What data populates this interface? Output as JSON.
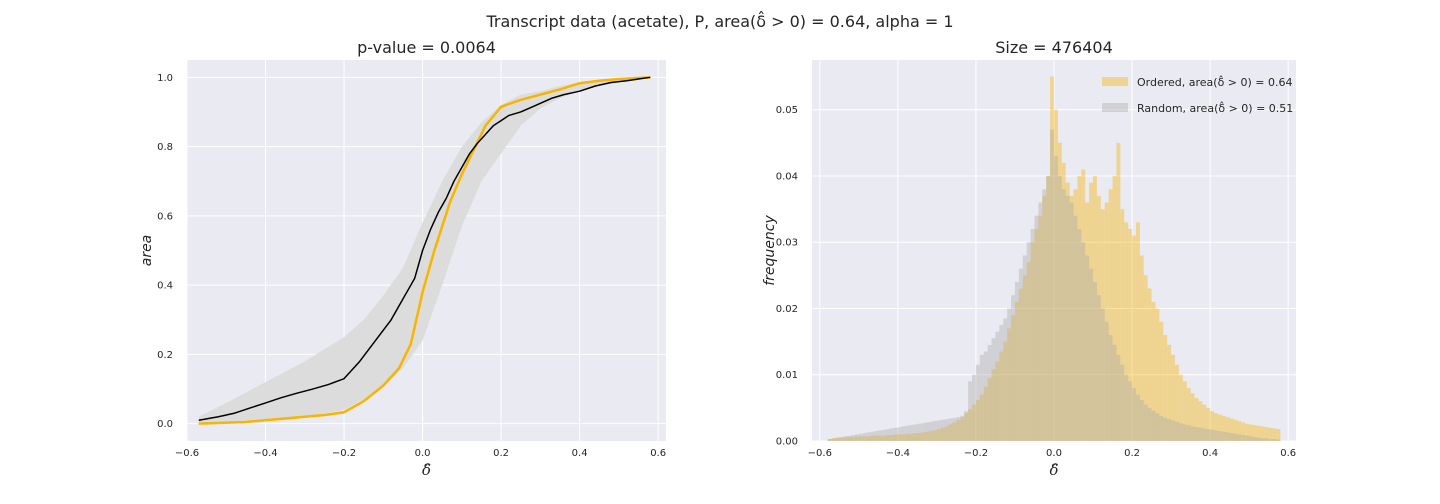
{
  "figure": {
    "suptitle": "Transcript data (acetate), P, area(δ̂ > 0) = 0.64, alpha = 1"
  },
  "chart_data": [
    {
      "type": "line",
      "title": "p-value = 0.0064",
      "xlabel": "δ̂",
      "ylabel": "area",
      "xlim": [
        -0.6,
        0.62
      ],
      "ylim": [
        -0.05,
        1.05
      ],
      "xticks": [
        -0.6,
        -0.4,
        -0.2,
        0.0,
        0.2,
        0.4,
        0.6
      ],
      "xtick_labels": [
        "−0.6",
        "−0.4",
        "−0.2",
        "0.0",
        "0.2",
        "0.4",
        "0.6"
      ],
      "yticks": [
        0.0,
        0.2,
        0.4,
        0.6,
        0.8,
        1.0
      ],
      "ytick_labels": [
        "0.0",
        "0.2",
        "0.4",
        "0.6",
        "0.8",
        "1.0"
      ],
      "grid": true,
      "colors": {
        "ordered": "#f7b500",
        "random": "#000000",
        "band": "#dcdcdc",
        "background": "#eaeaf2"
      },
      "series": [
        {
          "role": "ordered",
          "x": [
            -0.57,
            -0.45,
            -0.35,
            -0.25,
            -0.2,
            -0.15,
            -0.1,
            -0.06,
            -0.03,
            0.0,
            0.03,
            0.07,
            0.1,
            0.13,
            0.16,
            0.2,
            0.25,
            0.3,
            0.35,
            0.4,
            0.45,
            0.5,
            0.58
          ],
          "values": [
            0.0,
            0.005,
            0.015,
            0.025,
            0.033,
            0.065,
            0.11,
            0.16,
            0.23,
            0.38,
            0.5,
            0.64,
            0.72,
            0.79,
            0.86,
            0.915,
            0.935,
            0.95,
            0.965,
            0.983,
            0.99,
            0.995,
            1.0
          ]
        },
        {
          "role": "random",
          "x": [
            -0.57,
            -0.52,
            -0.48,
            -0.44,
            -0.4,
            -0.36,
            -0.32,
            -0.28,
            -0.24,
            -0.2,
            -0.18,
            -0.16,
            -0.14,
            -0.12,
            -0.1,
            -0.08,
            -0.06,
            -0.04,
            -0.02,
            0.0,
            0.02,
            0.04,
            0.06,
            0.08,
            0.1,
            0.12,
            0.14,
            0.16,
            0.18,
            0.2,
            0.22,
            0.25,
            0.28,
            0.3,
            0.33,
            0.36,
            0.4,
            0.44,
            0.48,
            0.52,
            0.55,
            0.58
          ],
          "values": [
            0.01,
            0.02,
            0.03,
            0.045,
            0.06,
            0.075,
            0.088,
            0.1,
            0.113,
            0.13,
            0.155,
            0.18,
            0.21,
            0.24,
            0.27,
            0.3,
            0.34,
            0.38,
            0.42,
            0.5,
            0.56,
            0.61,
            0.65,
            0.7,
            0.74,
            0.78,
            0.81,
            0.835,
            0.86,
            0.875,
            0.89,
            0.9,
            0.915,
            0.925,
            0.94,
            0.95,
            0.96,
            0.975,
            0.985,
            0.99,
            0.995,
            1.0
          ]
        }
      ],
      "band": {
        "x": [
          -0.57,
          -0.5,
          -0.4,
          -0.3,
          -0.2,
          -0.15,
          -0.1,
          -0.05,
          0.0,
          0.05,
          0.1,
          0.15,
          0.2,
          0.25,
          0.3,
          0.35,
          0.4,
          0.45,
          0.5,
          0.58
        ],
        "upper": [
          0.02,
          0.06,
          0.12,
          0.18,
          0.25,
          0.3,
          0.37,
          0.45,
          0.58,
          0.7,
          0.8,
          0.87,
          0.92,
          0.95,
          0.96,
          0.975,
          0.985,
          0.99,
          0.995,
          1.0
        ],
        "lower": [
          0.0,
          0.005,
          0.012,
          0.02,
          0.04,
          0.07,
          0.11,
          0.16,
          0.24,
          0.4,
          0.57,
          0.7,
          0.78,
          0.86,
          0.91,
          0.94,
          0.96,
          0.975,
          0.985,
          1.0
        ]
      }
    },
    {
      "type": "bar",
      "title": "Size = 476404",
      "xlabel": "δ̂",
      "ylabel": "frequency",
      "xlim": [
        -0.62,
        0.62
      ],
      "ylim": [
        0.0,
        0.0575
      ],
      "xticks": [
        -0.6,
        -0.4,
        -0.2,
        0.0,
        0.2,
        0.4,
        0.6
      ],
      "xtick_labels": [
        "−0.6",
        "−0.4",
        "−0.2",
        "0.0",
        "0.2",
        "0.4",
        "0.6"
      ],
      "yticks": [
        0.0,
        0.01,
        0.02,
        0.03,
        0.04,
        0.05
      ],
      "ytick_labels": [
        "0.00",
        "0.01",
        "0.02",
        "0.03",
        "0.04",
        "0.05"
      ],
      "grid": true,
      "legend_position": "upper-right",
      "bin_start": -0.58,
      "bin_width": 0.01,
      "colors": {
        "ordered": "#f7b500",
        "random": "#a9a9a9",
        "background": "#eaeaf2"
      },
      "series": [
        {
          "name": "Ordered, area(δ̂ > 0) = 0.64",
          "role": "ordered",
          "values": [
            0.0003,
            0.0004,
            0.0005,
            0.0005,
            0.0006,
            0.0006,
            0.0006,
            0.0007,
            0.0007,
            0.0007,
            0.0007,
            0.0008,
            0.0008,
            0.0008,
            0.0008,
            0.0009,
            0.0009,
            0.001,
            0.001,
            0.001,
            0.0011,
            0.0011,
            0.0012,
            0.0012,
            0.0013,
            0.0014,
            0.0015,
            0.0016,
            0.0018,
            0.002,
            0.0022,
            0.0025,
            0.0028,
            0.0032,
            0.0036,
            0.0042,
            0.0048,
            0.0055,
            0.0062,
            0.007,
            0.0082,
            0.0095,
            0.0108,
            0.012,
            0.0135,
            0.015,
            0.017,
            0.019,
            0.021,
            0.023,
            0.025,
            0.027,
            0.03,
            0.032,
            0.034,
            0.037,
            0.04,
            0.055,
            0.05,
            0.045,
            0.042,
            0.039,
            0.037,
            0.038,
            0.04,
            0.041,
            0.036,
            0.039,
            0.04,
            0.037,
            0.035,
            0.036,
            0.038,
            0.04,
            0.045,
            0.035,
            0.033,
            0.032,
            0.031,
            0.033,
            0.028,
            0.025,
            0.023,
            0.021,
            0.02,
            0.018,
            0.016,
            0.0145,
            0.013,
            0.0115,
            0.01,
            0.009,
            0.008,
            0.0072,
            0.0065,
            0.006,
            0.0055,
            0.005,
            0.0045,
            0.0042,
            0.004,
            0.0038,
            0.0036,
            0.0034,
            0.0032,
            0.003,
            0.0028,
            0.0026,
            0.0025,
            0.0024,
            0.0023,
            0.0022,
            0.0021,
            0.002,
            0.0019,
            0.0018
          ]
        },
        {
          "name": "Random, area(δ̂ > 0) = 0.51",
          "role": "random",
          "values": [
            0.0003,
            0.0004,
            0.0005,
            0.0006,
            0.0007,
            0.0008,
            0.0009,
            0.001,
            0.0011,
            0.0012,
            0.0013,
            0.0014,
            0.0015,
            0.0016,
            0.0017,
            0.0018,
            0.0019,
            0.002,
            0.0021,
            0.0022,
            0.0023,
            0.0024,
            0.0025,
            0.0026,
            0.0027,
            0.0028,
            0.0029,
            0.003,
            0.0031,
            0.0032,
            0.0033,
            0.0034,
            0.0035,
            0.0036,
            0.0038,
            0.0045,
            0.009,
            0.01,
            0.0115,
            0.013,
            0.0135,
            0.0145,
            0.0155,
            0.0165,
            0.0175,
            0.0185,
            0.02,
            0.022,
            0.024,
            0.026,
            0.028,
            0.03,
            0.032,
            0.034,
            0.036,
            0.038,
            0.04,
            0.047,
            0.043,
            0.04,
            0.038,
            0.037,
            0.036,
            0.034,
            0.032,
            0.03,
            0.028,
            0.026,
            0.024,
            0.022,
            0.02,
            0.018,
            0.016,
            0.0145,
            0.013,
            0.0115,
            0.01,
            0.009,
            0.008,
            0.007,
            0.0062,
            0.0055,
            0.005,
            0.0046,
            0.0042,
            0.0038,
            0.0035,
            0.0033,
            0.0031,
            0.0029,
            0.0027,
            0.0025,
            0.0024,
            0.0022,
            0.0021,
            0.002,
            0.0019,
            0.0018,
            0.0017,
            0.0016,
            0.0015,
            0.0014,
            0.0013,
            0.0012,
            0.0011,
            0.001,
            0.0009,
            0.0008,
            0.0007,
            0.0006,
            0.0005,
            0.0004,
            0.0004,
            0.0003,
            0.0003,
            0.0002
          ]
        }
      ]
    }
  ]
}
